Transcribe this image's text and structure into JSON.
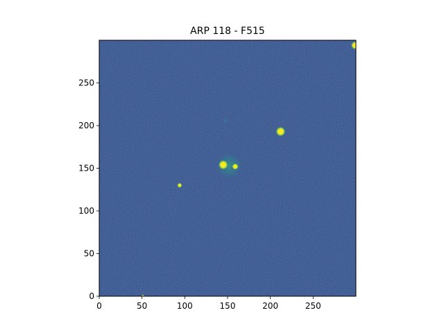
{
  "chart_data": {
    "type": "heatmap",
    "title": "ARP 118 - F515",
    "xlabel": "",
    "ylabel": "",
    "xlim": [
      0,
      300
    ],
    "ylim": [
      0,
      300
    ],
    "x_ticks": [
      0,
      50,
      100,
      150,
      200,
      250
    ],
    "y_ticks": [
      0,
      50,
      100,
      150,
      200,
      250
    ],
    "grid": false,
    "colormap": "viridis",
    "background_color": "#3a4f8c",
    "sources": [
      {
        "x": 145,
        "y": 154,
        "brightness": 1.0,
        "extent": 6
      },
      {
        "x": 159,
        "y": 152,
        "brightness": 0.9,
        "extent": 4
      },
      {
        "x": 212,
        "y": 193,
        "brightness": 1.0,
        "extent": 6
      },
      {
        "x": 94,
        "y": 130,
        "brightness": 0.9,
        "extent": 3
      },
      {
        "x": 299,
        "y": 294,
        "brightness": 1.0,
        "extent": 5
      },
      {
        "x": 51,
        "y": 0,
        "brightness": 0.6,
        "extent": 2
      },
      {
        "x": 148,
        "y": 206,
        "brightness": 0.3,
        "extent": 3
      },
      {
        "x": 152,
        "y": 153,
        "brightness": 0.35,
        "extent": 18
      }
    ]
  }
}
